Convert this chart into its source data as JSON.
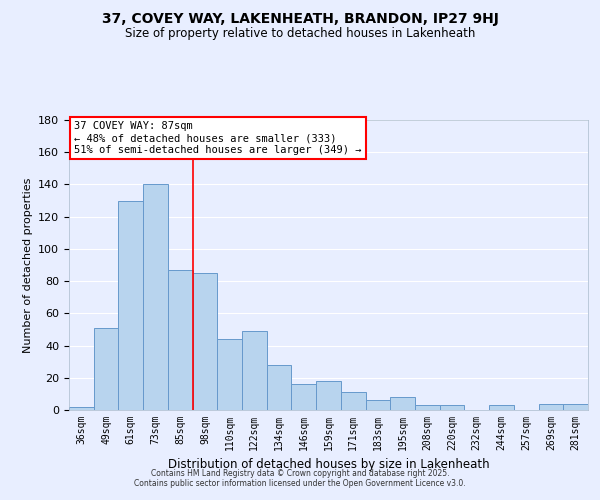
{
  "title": "37, COVEY WAY, LAKENHEATH, BRANDON, IP27 9HJ",
  "subtitle": "Size of property relative to detached houses in Lakenheath",
  "xlabel": "Distribution of detached houses by size in Lakenheath",
  "ylabel": "Number of detached properties",
  "bar_labels": [
    "36sqm",
    "49sqm",
    "61sqm",
    "73sqm",
    "85sqm",
    "98sqm",
    "110sqm",
    "122sqm",
    "134sqm",
    "146sqm",
    "159sqm",
    "171sqm",
    "183sqm",
    "195sqm",
    "208sqm",
    "220sqm",
    "232sqm",
    "244sqm",
    "257sqm",
    "269sqm",
    "281sqm"
  ],
  "bar_values": [
    2,
    51,
    130,
    140,
    87,
    85,
    44,
    49,
    28,
    16,
    18,
    11,
    6,
    8,
    3,
    3,
    0,
    3,
    0,
    4,
    4
  ],
  "bar_color": "#b8d4ee",
  "bar_edge_color": "#6699cc",
  "ylim": [
    0,
    180
  ],
  "yticks": [
    0,
    20,
    40,
    60,
    80,
    100,
    120,
    140,
    160,
    180
  ],
  "property_line_x": 4.5,
  "property_line_color": "red",
  "annotation_title": "37 COVEY WAY: 87sqm",
  "annotation_line1": "← 48% of detached houses are smaller (333)",
  "annotation_line2": "51% of semi-detached houses are larger (349) →",
  "annotation_box_color": "red",
  "background_color": "#e8eeff",
  "grid_color": "#ffffff",
  "footer_line1": "Contains HM Land Registry data © Crown copyright and database right 2025.",
  "footer_line2": "Contains public sector information licensed under the Open Government Licence v3.0."
}
